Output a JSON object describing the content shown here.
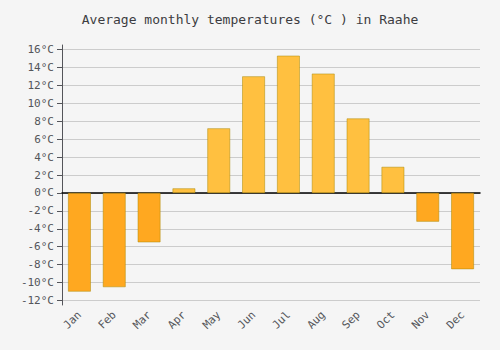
{
  "chart_data": {
    "type": "bar",
    "title": "Average monthly temperatures (°C ) in Raahe",
    "categories": [
      "Jan",
      "Feb",
      "Mar",
      "Apr",
      "May",
      "Jun",
      "Jul",
      "Aug",
      "Sep",
      "Oct",
      "Nov",
      "Dec"
    ],
    "values": [
      -11,
      -10.5,
      -5.5,
      0.5,
      7.2,
      13,
      15.3,
      13.3,
      8.3,
      2.9,
      -3.2,
      -8.5
    ],
    "colors": [
      "#FFA820",
      "#FFA820",
      "#FFA820",
      "#FFC040",
      "#FFC040",
      "#FFC040",
      "#FFC040",
      "#FFC040",
      "#FFC040",
      "#FFC040",
      "#FFA820",
      "#FFA820"
    ],
    "ylim": [
      -12.5,
      16.5
    ],
    "yticks": [
      {
        "value": -12,
        "label": "-12°C"
      },
      {
        "value": -10,
        "label": "-10°C"
      },
      {
        "value": -8,
        "label": "-8°C"
      },
      {
        "value": -6,
        "label": "-6°C"
      },
      {
        "value": -4,
        "label": "-4°C"
      },
      {
        "value": -2,
        "label": "-2°C"
      },
      {
        "value": 0,
        "label": "0°C"
      },
      {
        "value": 2,
        "label": "2°C"
      },
      {
        "value": 4,
        "label": "4°C"
      },
      {
        "value": 6,
        "label": "6°C"
      },
      {
        "value": 8,
        "label": "8°C"
      },
      {
        "value": 10,
        "label": "10°C"
      },
      {
        "value": 12,
        "label": "12°C"
      },
      {
        "value": 14,
        "label": "14°C"
      },
      {
        "value": 16,
        "label": "16°C"
      }
    ],
    "grid": true
  }
}
